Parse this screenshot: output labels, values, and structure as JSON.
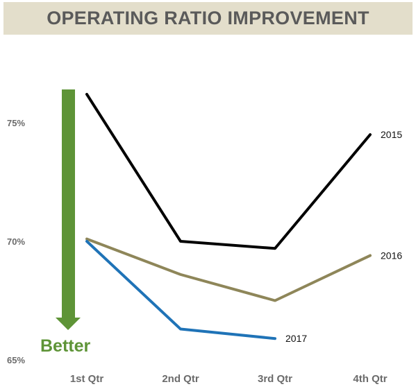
{
  "header": {
    "title": "OPERATING RATIO IMPROVEMENT"
  },
  "annotation": {
    "label": "Better",
    "color": "#5e9437"
  },
  "chart_data": {
    "type": "line",
    "title": "OPERATING RATIO IMPROVEMENT",
    "categories": [
      "1st Qtr",
      "2nd Qtr",
      "3rd Qtr",
      "4th Qtr"
    ],
    "yticks": [
      {
        "value": 65,
        "label": "65%"
      },
      {
        "value": 70,
        "label": "70%"
      },
      {
        "value": 75,
        "label": "75%"
      }
    ],
    "ylim": [
      65,
      76.5
    ],
    "grid": false,
    "legend": "inline-end-labels",
    "series": [
      {
        "name": "2015",
        "color": "#000000",
        "values": [
          76.2,
          70.0,
          69.7,
          74.5
        ]
      },
      {
        "name": "2016",
        "color": "#8e8659",
        "values": [
          70.1,
          68.6,
          67.5,
          69.4
        ]
      },
      {
        "name": "2017",
        "color": "#1f73b7",
        "values": [
          70.0,
          66.3,
          65.9,
          null
        ]
      }
    ]
  }
}
